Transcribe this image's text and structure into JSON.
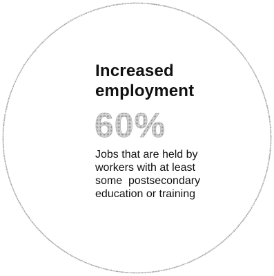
{
  "heading": {
    "line1": "Increased",
    "line2": "employment"
  },
  "stat": {
    "value": "60%"
  },
  "description": {
    "lines": [
      "Jobs that are held by",
      "workers with at least",
      "some  postsecondary",
      "education or training"
    ]
  },
  "colors": {
    "text": "#111111",
    "outline": "#9a9a9a",
    "stat_fill": "#bdbdbd"
  }
}
